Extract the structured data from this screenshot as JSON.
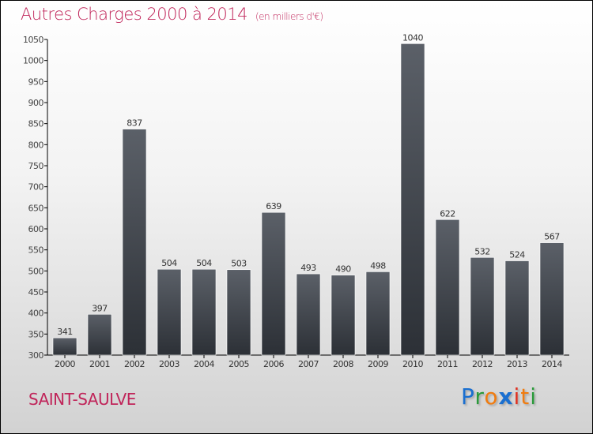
{
  "chart_data": {
    "type": "bar",
    "title": "Autres Charges 2000 à 2014",
    "subtitle": "(en milliers d'€)",
    "xlabel": "",
    "ylabel": "",
    "categories": [
      "2000",
      "2001",
      "2002",
      "2003",
      "2004",
      "2005",
      "2006",
      "2007",
      "2008",
      "2009",
      "2010",
      "2011",
      "2012",
      "2013",
      "2014"
    ],
    "values": [
      341,
      397,
      837,
      504,
      504,
      503,
      639,
      493,
      490,
      498,
      1040,
      622,
      532,
      524,
      567
    ],
    "ylim": [
      300,
      1050
    ],
    "yticks": [
      300,
      350,
      400,
      450,
      500,
      550,
      600,
      650,
      700,
      750,
      800,
      850,
      900,
      950,
      1000,
      1050
    ],
    "grid": false,
    "bar_color_top": "#5b6068",
    "bar_color_bottom": "#2c3036"
  },
  "location": "SAINT-SAULVE",
  "logo": {
    "text": "Proxiti",
    "letters": [
      "P",
      "r",
      "o",
      "x",
      "i",
      "t",
      "i"
    ],
    "colors": [
      "#1a6fd0",
      "#2a9a3a",
      "#f07c10",
      "#1a6fd0",
      "#e03020",
      "#f07c10",
      "#2a9a3a"
    ]
  }
}
